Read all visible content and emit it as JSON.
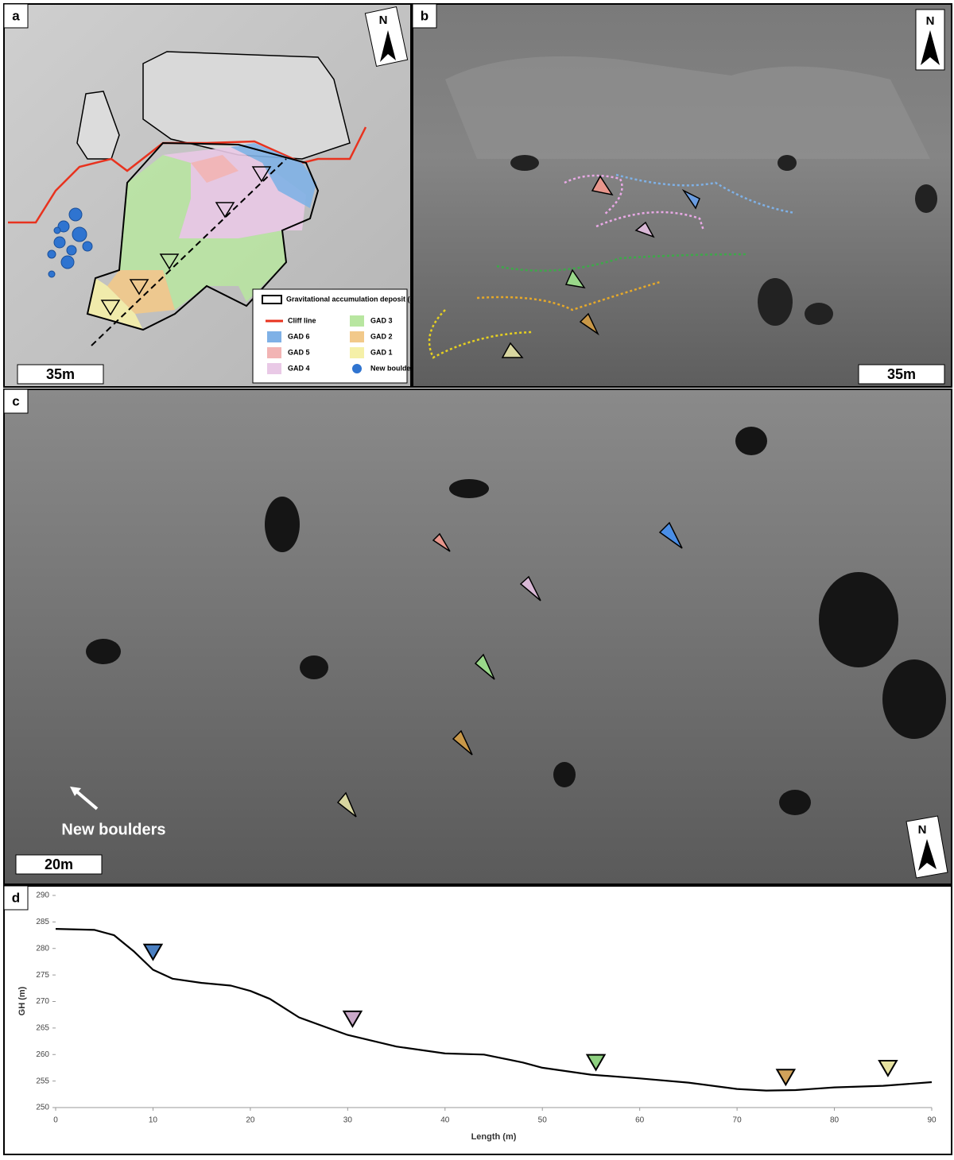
{
  "panels": [
    {
      "label": "a",
      "scale": "35m",
      "north": "N",
      "legend": [
        {
          "label": "Gravitational accumulation deposit (GAD)",
          "kind": "outline",
          "color": "#000000"
        },
        {
          "label": "Cliff line",
          "kind": "line",
          "color": "#e8321e"
        },
        {
          "label": "GAD 6",
          "kind": "box",
          "color": "#7fb1e6"
        },
        {
          "label": "GAD 5",
          "kind": "box",
          "color": "#f2b4b4"
        },
        {
          "label": "GAD 4",
          "kind": "box",
          "color": "#e9c9e6"
        },
        {
          "label": "GAD 3",
          "kind": "box",
          "color": "#b8e6a0"
        },
        {
          "label": "GAD 2",
          "kind": "box",
          "color": "#f2c98a"
        },
        {
          "label": "GAD 1",
          "kind": "box",
          "color": "#f5f0a8"
        },
        {
          "label": "New boulder",
          "kind": "circle",
          "color": "#2f74d0"
        }
      ]
    },
    {
      "label": "b",
      "scale": "35m",
      "north": "N"
    },
    {
      "label": "c",
      "scale": "20m",
      "north": "N",
      "annotation": "New boulders"
    }
  ],
  "chart_data": {
    "type": "line",
    "panel_label": "d",
    "x_label": "Length (m)",
    "y_label": "GH (m)",
    "x": [
      0,
      4,
      6,
      8,
      10,
      12,
      15,
      18,
      20,
      22,
      25,
      28,
      30,
      35,
      40,
      44,
      48,
      50,
      55,
      60,
      65,
      70,
      73,
      76,
      80,
      85,
      90
    ],
    "values": [
      283.7,
      283.5,
      282.5,
      279.5,
      276,
      274.3,
      273.5,
      273,
      272,
      270.5,
      267,
      265,
      263.7,
      261.5,
      260.2,
      260,
      258.5,
      257.5,
      256.2,
      255.5,
      254.7,
      253.5,
      253.2,
      253.3,
      253.8,
      254.1,
      254.8
    ],
    "color": "#000000",
    "markers": {
      "x": [
        10,
        30.5,
        55.5,
        75,
        85.5
      ],
      "values": [
        279.4,
        266.8,
        258.6,
        255.8,
        257.5
      ],
      "colors": [
        "#4a7fc1",
        "#c9a8c8",
        "#8ed080",
        "#d1a25a",
        "#e6e2a0"
      ]
    },
    "xlim": [
      0,
      90
    ],
    "ylim": [
      250,
      290
    ],
    "xticks": [
      0,
      10,
      20,
      30,
      40,
      50,
      60,
      70,
      80,
      90
    ],
    "yticks": [
      250,
      255,
      260,
      265,
      270,
      275,
      280,
      285,
      290
    ]
  }
}
